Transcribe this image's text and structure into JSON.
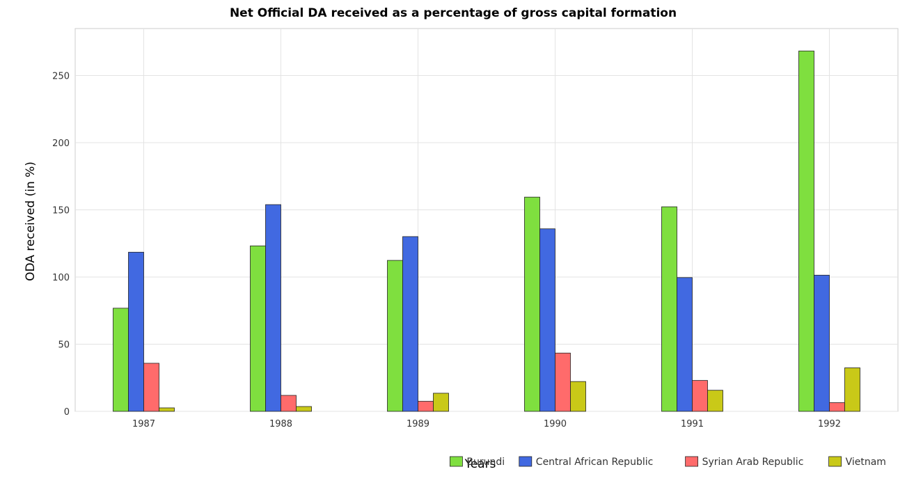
{
  "chart_data": {
    "type": "bar",
    "title": "Net Official DA received as a percentage of gross capital formation",
    "xlabel": "Years",
    "ylabel": "ODA received (in %)",
    "categories": [
      "1987",
      "1988",
      "1989",
      "1990",
      "1991",
      "1992"
    ],
    "series": [
      {
        "name": "Burundi",
        "color": "#7fdf3f",
        "values": [
          76.8,
          123.2,
          112.4,
          159.5,
          152.3,
          268.3
        ]
      },
      {
        "name": "Central African Republic",
        "color": "#4169e1",
        "values": [
          118.5,
          153.9,
          130.1,
          135.9,
          99.6,
          101.4
        ]
      },
      {
        "name": "Syrian Arab Republic",
        "color": "#ff6b6b",
        "values": [
          35.8,
          11.9,
          7.5,
          43.4,
          23.0,
          6.5
        ]
      },
      {
        "name": "Vietnam",
        "color": "#c9c918",
        "values": [
          2.6,
          3.6,
          13.5,
          22.2,
          15.7,
          32.4
        ]
      }
    ],
    "ylim": [
      0,
      285
    ],
    "yticks": [
      0,
      50,
      100,
      150,
      200,
      250
    ],
    "grid": true,
    "legend_position": "bottom-right"
  }
}
